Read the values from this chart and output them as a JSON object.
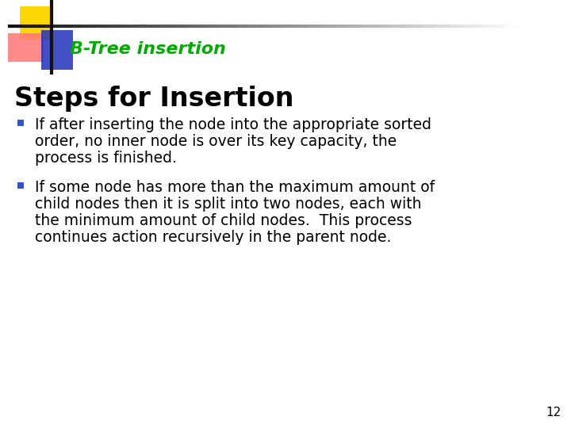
{
  "title": "B-Tree insertion",
  "title_color": "#00AA00",
  "section_heading": "Steps for Insertion",
  "bullet1_line1": "If after inserting the node into the appropriate sorted",
  "bullet1_line2": "order, no inner node is over its key capacity, the",
  "bullet1_line3": "process is finished.",
  "bullet2_line1": "If some node has more than the maximum amount of",
  "bullet2_line2": "child nodes then it is split into two nodes, each with",
  "bullet2_line3": "the minimum amount of child nodes.  This process",
  "bullet2_line4": "continues action recursively in the parent node.",
  "bullet_color": "#3355CC",
  "text_color": "#000000",
  "bg_color": "#FFFFFF",
  "page_number": "12",
  "square_yellow": "#FFD700",
  "square_red": "#FF7777",
  "square_blue": "#2233BB"
}
